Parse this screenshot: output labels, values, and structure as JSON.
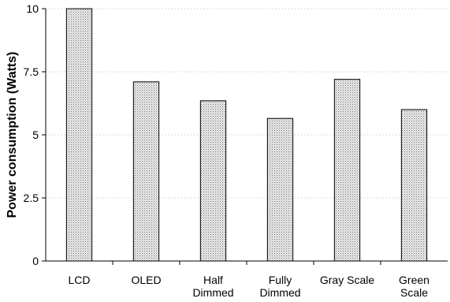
{
  "chart_data": {
    "type": "bar",
    "title": "",
    "xlabel": "",
    "ylabel": "Power consumption (Watts)",
    "ylim": [
      0,
      10
    ],
    "yticks": [
      0,
      2.5,
      5,
      7.5,
      10
    ],
    "ytick_labels": [
      "0",
      "2.5",
      "5",
      "7.5",
      "10"
    ],
    "grid": true,
    "legend": "none",
    "categories": [
      [
        "LCD"
      ],
      [
        "OLED"
      ],
      [
        "Half",
        "Dimmed"
      ],
      [
        "Fully",
        "Dimmed"
      ],
      [
        "Gray Scale"
      ],
      [
        "Green",
        "Scale"
      ]
    ],
    "values": [
      10.0,
      7.1,
      6.35,
      5.65,
      7.2,
      6.0
    ],
    "bar_fill": "#d9d9d9"
  }
}
